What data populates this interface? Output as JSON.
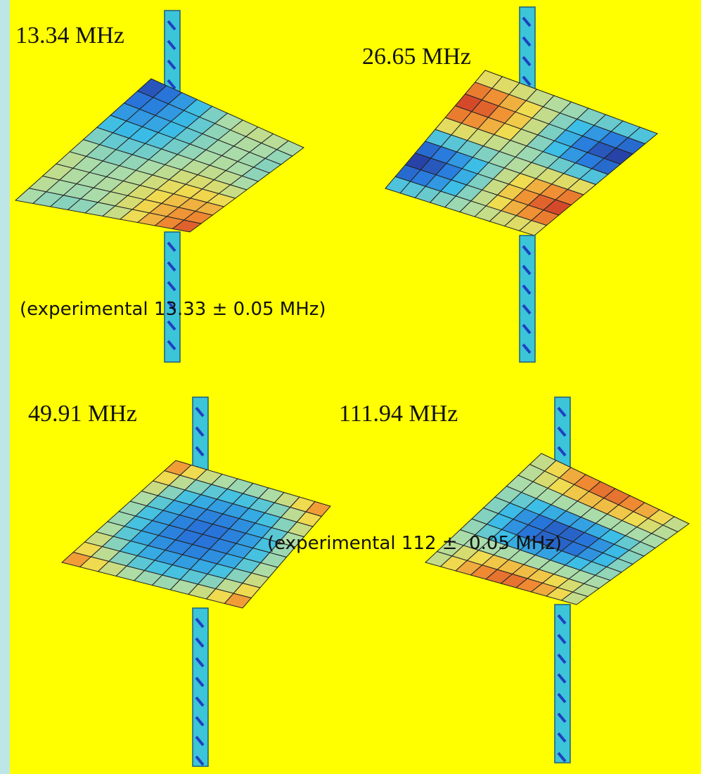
{
  "modes": [
    {
      "frequency": "13.34 MHz",
      "experimental": "(experimental 13.33 ± 0.05 MHz)"
    },
    {
      "frequency": "26.65 MHz"
    },
    {
      "frequency": "49.91 MHz"
    },
    {
      "frequency": "111.94 MHz",
      "experimental": "(experimental 112 ±  0.05 MHz)"
    }
  ]
}
